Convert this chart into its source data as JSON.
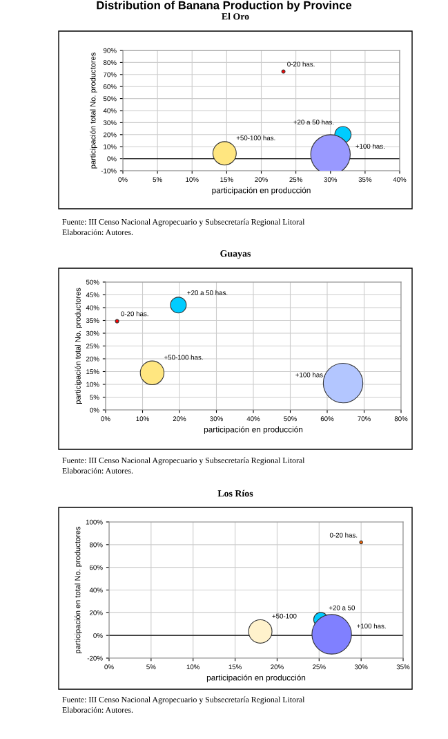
{
  "chart_data": [
    {
      "type": "bubble",
      "title": "El Oro",
      "subtitle": "Distribution of Banana Production by Province",
      "xlabel": "participación en producción",
      "ylabel": "participación total No. productores",
      "xlim": [
        0,
        40
      ],
      "xticks": [
        {
          "value": 0,
          "label": "0%"
        },
        {
          "value": 5,
          "label": "5%"
        },
        {
          "value": 10,
          "label": "10%"
        },
        {
          "value": 15,
          "label": "15%"
        },
        {
          "value": 20,
          "label": "20%"
        },
        {
          "value": 25,
          "label": "25%"
        },
        {
          "value": 30,
          "label": "30%"
        },
        {
          "value": 35,
          "label": "35%"
        },
        {
          "value": 40,
          "label": "40%"
        }
      ],
      "ylim": [
        -10,
        90
      ],
      "yticks": [
        {
          "value": -10,
          "label": "-10%"
        },
        {
          "value": 0,
          "label": "0%"
        },
        {
          "value": 10,
          "label": "10%"
        },
        {
          "value": 20,
          "label": "20%"
        },
        {
          "value": 30,
          "label": "30%"
        },
        {
          "value": 40,
          "label": "40%"
        },
        {
          "value": 50,
          "label": "50%"
        },
        {
          "value": 60,
          "label": "60%"
        },
        {
          "value": 70,
          "label": "70%"
        },
        {
          "value": 80,
          "label": "80%"
        },
        {
          "value": 90,
          "label": "90%"
        }
      ],
      "grid": true,
      "ref_lines": [
        {
          "axis": "y",
          "value": 0,
          "color": "#000000"
        }
      ],
      "series": [
        {
          "name": "0-20 has.",
          "color": "#ff0000",
          "x": [
            23.2
          ],
          "values": [
            72.5
          ],
          "sizes": [
            0.007
          ]
        },
        {
          "name": "+20 a 50 has.",
          "color": "#00ccff",
          "x": [
            31.8
          ],
          "values": [
            20
          ],
          "sizes": [
            0.17
          ]
        },
        {
          "name": "+50-100 has.",
          "color": "#ffe680",
          "x": [
            14.7
          ],
          "values": [
            4.5
          ],
          "sizes": [
            0.35
          ]
        },
        {
          "name": "+100 has.",
          "color": "#9999ff",
          "x": [
            30
          ],
          "values": [
            3.5
          ],
          "sizes": [
            1
          ]
        }
      ],
      "annotations": [
        "Fuente: III Censo Nacional Agropecuario y Subsecretaría Regional Litoral",
        "Elaboración: Autores."
      ]
    },
    {
      "type": "bubble",
      "title": "Guayas",
      "xlabel": "participación en producción",
      "ylabel": "participación total No. productores",
      "xlim": [
        0,
        80
      ],
      "xticks": [
        {
          "value": 0,
          "label": "0%"
        },
        {
          "value": 10,
          "label": "10%"
        },
        {
          "value": 20,
          "label": "20%"
        },
        {
          "value": 30,
          "label": "30%"
        },
        {
          "value": 40,
          "label": "40%"
        },
        {
          "value": 50,
          "label": "50%"
        },
        {
          "value": 60,
          "label": "60%"
        },
        {
          "value": 70,
          "label": "70%"
        },
        {
          "value": 80,
          "label": "80%"
        }
      ],
      "ylim": [
        0,
        50
      ],
      "yticks": [
        {
          "value": 0,
          "label": "0%"
        },
        {
          "value": 5,
          "label": "5%"
        },
        {
          "value": 10,
          "label": "10%"
        },
        {
          "value": 15,
          "label": "15%"
        },
        {
          "value": 20,
          "label": "20%"
        },
        {
          "value": 25,
          "label": "25%"
        },
        {
          "value": 30,
          "label": "30%"
        },
        {
          "value": 35,
          "label": "35%"
        },
        {
          "value": 40,
          "label": "40%"
        },
        {
          "value": 45,
          "label": "45%"
        },
        {
          "value": 50,
          "label": "50%"
        }
      ],
      "grid": true,
      "series": [
        {
          "name": "0-20 has.",
          "color": "#ff0000",
          "x": [
            3.1
          ],
          "values": [
            34.7
          ],
          "sizes": [
            0.008
          ]
        },
        {
          "name": "+20 a 50 has.",
          "color": "#00ccff",
          "x": [
            19.7
          ],
          "values": [
            41
          ],
          "sizes": [
            0.16
          ]
        },
        {
          "name": "+50-100 has.",
          "color": "#ffe680",
          "x": [
            12.6
          ],
          "values": [
            14.5
          ],
          "sizes": [
            0.36
          ]
        },
        {
          "name": "+100 has.",
          "color": "#b3c6ff",
          "x": [
            64.3
          ],
          "values": [
            10.5
          ],
          "sizes": [
            1
          ]
        }
      ],
      "annotations": [
        "Fuente: III Censo Nacional Agropecuario y Subsecretaría Regional Litoral",
        "Elaboración: Autores."
      ]
    },
    {
      "type": "bubble",
      "title": "Los Ríos",
      "xlabel": "participación en producción",
      "ylabel": "participación en total No. productores",
      "xlim": [
        0,
        35
      ],
      "xticks": [
        {
          "value": 0,
          "label": "0%"
        },
        {
          "value": 5,
          "label": "5%"
        },
        {
          "value": 10,
          "label": "10%"
        },
        {
          "value": 15,
          "label": "15%"
        },
        {
          "value": 20,
          "label": "20%"
        },
        {
          "value": 25,
          "label": "25%"
        },
        {
          "value": 30,
          "label": "30%"
        },
        {
          "value": 35,
          "label": "35%"
        }
      ],
      "ylim": [
        -20,
        100
      ],
      "yticks": [
        {
          "value": -20,
          "label": "-20%"
        },
        {
          "value": 0,
          "label": "0%"
        },
        {
          "value": 20,
          "label": "20%"
        },
        {
          "value": 40,
          "label": "40%"
        },
        {
          "value": 60,
          "label": "60%"
        },
        {
          "value": 80,
          "label": "80%"
        },
        {
          "value": 100,
          "label": "100%"
        }
      ],
      "grid": true,
      "ref_lines": [
        {
          "axis": "y",
          "value": 0,
          "color": "#000000"
        }
      ],
      "series": [
        {
          "name": "0-20 has.",
          "color": "#ff6600",
          "x": [
            30
          ],
          "values": [
            82
          ],
          "sizes": [
            0.006
          ]
        },
        {
          "name": "+20 a 50",
          "color": "#00ccff",
          "x": [
            25.2
          ],
          "values": [
            14
          ],
          "sizes": [
            0.13
          ]
        },
        {
          "name": "+50-100",
          "color": "#fff2cc",
          "x": [
            18
          ],
          "values": [
            3.5
          ],
          "sizes": [
            0.35
          ]
        },
        {
          "name": "+100 has.",
          "color": "#8080ff",
          "x": [
            26.5
          ],
          "values": [
            1
          ],
          "sizes": [
            1
          ]
        }
      ],
      "annotations": [
        "Fuente: III Censo Nacional Agropecuario y Subsecretaría Regional Litoral",
        "Elaboración: Autores."
      ]
    }
  ]
}
